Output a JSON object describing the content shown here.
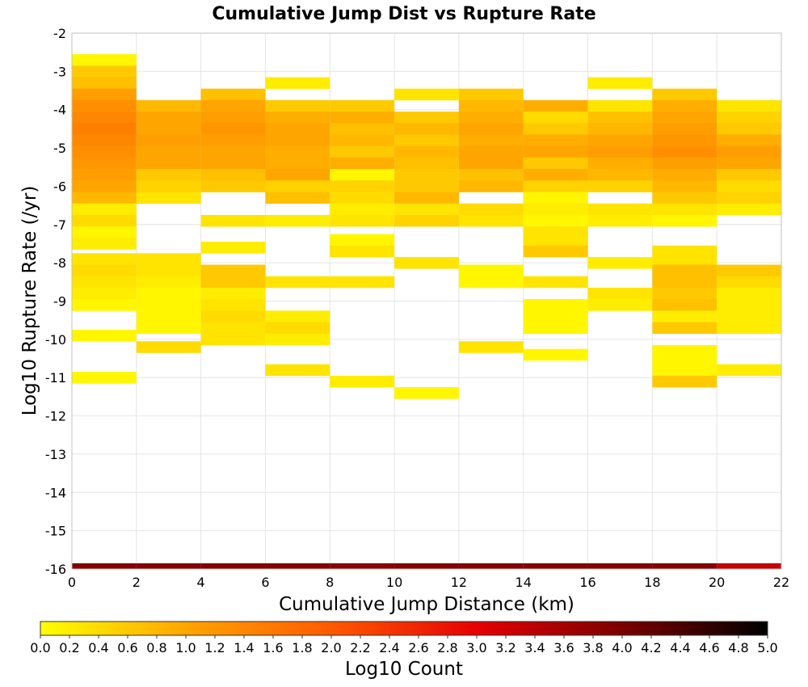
{
  "chart_data": {
    "type": "heatmap",
    "title": "Cumulative Jump Dist vs Rupture Rate",
    "xlabel": "Cumulative Jump Distance (km)",
    "ylabel": "Log10 Rupture Rate (/yr)",
    "xlim": [
      0,
      22
    ],
    "ylim": [
      -16,
      -2
    ],
    "x_ticks": [
      "0",
      "2",
      "4",
      "6",
      "8",
      "10",
      "12",
      "14",
      "16",
      "18",
      "20",
      "22"
    ],
    "y_ticks": [
      "-2",
      "-3",
      "-4",
      "-5",
      "-6",
      "-7",
      "-8",
      "-9",
      "-10",
      "-11",
      "-12",
      "-13",
      "-14",
      "-15",
      "-16"
    ],
    "x_bin_width": 2,
    "y_bin_height": 0.3,
    "grid": true,
    "colorbar": {
      "label": "Log10 Count",
      "range": [
        0,
        5
      ],
      "ticks": [
        "0.0",
        "0.2",
        "0.4",
        "0.6",
        "0.8",
        "1.0",
        "1.2",
        "1.4",
        "1.6",
        "1.8",
        "2.0",
        "2.2",
        "2.4",
        "2.6",
        "2.8",
        "3.0",
        "3.2",
        "3.4",
        "3.6",
        "3.8",
        "4.0",
        "4.2",
        "4.4",
        "4.6",
        "4.8",
        "5.0"
      ],
      "colors": [
        "#ffff00",
        "#ffa500",
        "#ff5a00",
        "#e60000",
        "#7a0000",
        "#000000"
      ]
    },
    "columns": [
      {
        "x_start": 0,
        "cells": [
          {
            "y": -2.7,
            "v": 0.1
          },
          {
            "y": -3.0,
            "v": 0.6
          },
          {
            "y": -3.3,
            "v": 0.7
          },
          {
            "y": -3.6,
            "v": 1.1
          },
          {
            "y": -3.9,
            "v": 1.3
          },
          {
            "y": -4.2,
            "v": 1.4
          },
          {
            "y": -4.5,
            "v": 1.5
          },
          {
            "y": -4.8,
            "v": 1.4
          },
          {
            "y": -5.1,
            "v": 1.3
          },
          {
            "y": -5.4,
            "v": 1.2
          },
          {
            "y": -5.7,
            "v": 1.1
          },
          {
            "y": -6.0,
            "v": 1.0
          },
          {
            "y": -6.3,
            "v": 0.8
          },
          {
            "y": -6.6,
            "v": 0.2
          },
          {
            "y": -6.9,
            "v": 0.4
          },
          {
            "y": -7.2,
            "v": 0.1
          },
          {
            "y": -7.5,
            "v": 0.2
          },
          {
            "y": -7.9,
            "v": 0.3
          },
          {
            "y": -8.2,
            "v": 0.4
          },
          {
            "y": -8.5,
            "v": 0.3
          },
          {
            "y": -8.8,
            "v": 0.2
          },
          {
            "y": -9.1,
            "v": 0.1
          },
          {
            "y": -9.9,
            "v": 0.1
          },
          {
            "y": -11.0,
            "v": 0.1
          }
        ]
      },
      {
        "x_start": 2,
        "cells": [
          {
            "y": -3.9,
            "v": 0.8
          },
          {
            "y": -4.2,
            "v": 1.0
          },
          {
            "y": -4.5,
            "v": 1.0
          },
          {
            "y": -4.8,
            "v": 1.1
          },
          {
            "y": -5.1,
            "v": 1.0
          },
          {
            "y": -5.4,
            "v": 1.0
          },
          {
            "y": -5.7,
            "v": 0.6
          },
          {
            "y": -6.0,
            "v": 0.5
          },
          {
            "y": -6.3,
            "v": 0.3
          },
          {
            "y": -7.9,
            "v": 0.3
          },
          {
            "y": -8.2,
            "v": 0.3
          },
          {
            "y": -8.5,
            "v": 0.2
          },
          {
            "y": -8.8,
            "v": 0.1
          },
          {
            "y": -9.1,
            "v": 0.1
          },
          {
            "y": -9.4,
            "v": 0.1
          },
          {
            "y": -9.7,
            "v": 0.1
          },
          {
            "y": -10.2,
            "v": 0.4
          }
        ]
      },
      {
        "x_start": 4,
        "cells": [
          {
            "y": -3.6,
            "v": 0.7
          },
          {
            "y": -3.9,
            "v": 1.0
          },
          {
            "y": -4.2,
            "v": 1.1
          },
          {
            "y": -4.5,
            "v": 1.2
          },
          {
            "y": -4.8,
            "v": 1.1
          },
          {
            "y": -5.1,
            "v": 1.0
          },
          {
            "y": -5.4,
            "v": 1.0
          },
          {
            "y": -5.7,
            "v": 0.7
          },
          {
            "y": -6.0,
            "v": 0.6
          },
          {
            "y": -6.9,
            "v": 0.3
          },
          {
            "y": -7.6,
            "v": 0.2
          },
          {
            "y": -8.2,
            "v": 0.6
          },
          {
            "y": -8.5,
            "v": 0.6
          },
          {
            "y": -8.8,
            "v": 0.2
          },
          {
            "y": -9.1,
            "v": 0.3
          },
          {
            "y": -9.4,
            "v": 0.4
          },
          {
            "y": -9.7,
            "v": 0.3
          },
          {
            "y": -10.0,
            "v": 0.3
          }
        ]
      },
      {
        "x_start": 6,
        "cells": [
          {
            "y": -3.3,
            "v": 0.2
          },
          {
            "y": -3.9,
            "v": 0.6
          },
          {
            "y": -4.2,
            "v": 0.9
          },
          {
            "y": -4.5,
            "v": 1.0
          },
          {
            "y": -4.8,
            "v": 1.0
          },
          {
            "y": -5.1,
            "v": 0.9
          },
          {
            "y": -5.4,
            "v": 0.9
          },
          {
            "y": -5.7,
            "v": 1.0
          },
          {
            "y": -6.0,
            "v": 0.5
          },
          {
            "y": -6.3,
            "v": 0.7
          },
          {
            "y": -6.9,
            "v": 0.2
          },
          {
            "y": -8.5,
            "v": 0.3
          },
          {
            "y": -9.4,
            "v": 0.2
          },
          {
            "y": -9.7,
            "v": 0.4
          },
          {
            "y": -10.0,
            "v": 0.2
          },
          {
            "y": -10.8,
            "v": 0.3
          }
        ]
      },
      {
        "x_start": 8,
        "cells": [
          {
            "y": -3.9,
            "v": 0.6
          },
          {
            "y": -4.2,
            "v": 0.9
          },
          {
            "y": -4.5,
            "v": 0.7
          },
          {
            "y": -4.8,
            "v": 0.8
          },
          {
            "y": -5.1,
            "v": 0.6
          },
          {
            "y": -5.4,
            "v": 0.9
          },
          {
            "y": -5.7,
            "v": 0.1
          },
          {
            "y": -6.0,
            "v": 0.5
          },
          {
            "y": -6.3,
            "v": 0.4
          },
          {
            "y": -6.6,
            "v": 0.2
          },
          {
            "y": -6.9,
            "v": 0.3
          },
          {
            "y": -7.4,
            "v": 0.1
          },
          {
            "y": -7.7,
            "v": 0.3
          },
          {
            "y": -8.5,
            "v": 0.3
          },
          {
            "y": -11.1,
            "v": 0.2
          }
        ]
      },
      {
        "x_start": 10,
        "cells": [
          {
            "y": -3.6,
            "v": 0.3
          },
          {
            "y": -4.2,
            "v": 0.6
          },
          {
            "y": -4.5,
            "v": 0.8
          },
          {
            "y": -4.8,
            "v": 0.6
          },
          {
            "y": -5.1,
            "v": 0.8
          },
          {
            "y": -5.4,
            "v": 0.7
          },
          {
            "y": -5.7,
            "v": 0.6
          },
          {
            "y": -6.0,
            "v": 0.6
          },
          {
            "y": -6.3,
            "v": 0.8
          },
          {
            "y": -6.6,
            "v": 0.3
          },
          {
            "y": -6.9,
            "v": 0.5
          },
          {
            "y": -8.0,
            "v": 0.3
          },
          {
            "y": -11.4,
            "v": 0.1
          }
        ]
      },
      {
        "x_start": 12,
        "cells": [
          {
            "y": -3.6,
            "v": 0.6
          },
          {
            "y": -3.9,
            "v": 0.8
          },
          {
            "y": -4.2,
            "v": 0.9
          },
          {
            "y": -4.5,
            "v": 1.0
          },
          {
            "y": -4.8,
            "v": 0.9
          },
          {
            "y": -5.1,
            "v": 1.0
          },
          {
            "y": -5.4,
            "v": 1.0
          },
          {
            "y": -5.7,
            "v": 0.7
          },
          {
            "y": -6.0,
            "v": 0.8
          },
          {
            "y": -6.6,
            "v": 0.4
          },
          {
            "y": -6.9,
            "v": 0.3
          },
          {
            "y": -8.2,
            "v": 0.1
          },
          {
            "y": -8.5,
            "v": 0.1
          },
          {
            "y": -10.2,
            "v": 0.3
          }
        ]
      },
      {
        "x_start": 14,
        "cells": [
          {
            "y": -3.9,
            "v": 0.9
          },
          {
            "y": -4.2,
            "v": 0.4
          },
          {
            "y": -4.5,
            "v": 0.6
          },
          {
            "y": -4.8,
            "v": 0.9
          },
          {
            "y": -5.1,
            "v": 1.0
          },
          {
            "y": -5.4,
            "v": 0.6
          },
          {
            "y": -5.7,
            "v": 0.9
          },
          {
            "y": -6.0,
            "v": 0.5
          },
          {
            "y": -6.3,
            "v": 0.1
          },
          {
            "y": -6.6,
            "v": 0.2
          },
          {
            "y": -6.9,
            "v": 0.1
          },
          {
            "y": -7.2,
            "v": 0.3
          },
          {
            "y": -7.5,
            "v": 0.3
          },
          {
            "y": -7.7,
            "v": 0.6
          },
          {
            "y": -8.5,
            "v": 0.3
          },
          {
            "y": -9.1,
            "v": 0.1
          },
          {
            "y": -9.4,
            "v": 0.1
          },
          {
            "y": -9.7,
            "v": 0.1
          },
          {
            "y": -10.4,
            "v": 0.1
          }
        ]
      },
      {
        "x_start": 16,
        "cells": [
          {
            "y": -3.3,
            "v": 0.2
          },
          {
            "y": -3.9,
            "v": 0.3
          },
          {
            "y": -4.2,
            "v": 0.7
          },
          {
            "y": -4.5,
            "v": 0.8
          },
          {
            "y": -4.8,
            "v": 1.0
          },
          {
            "y": -5.1,
            "v": 1.1
          },
          {
            "y": -5.4,
            "v": 0.9
          },
          {
            "y": -5.7,
            "v": 0.8
          },
          {
            "y": -6.0,
            "v": 0.5
          },
          {
            "y": -6.6,
            "v": 0.3
          },
          {
            "y": -6.9,
            "v": 0.2
          },
          {
            "y": -8.0,
            "v": 0.2
          },
          {
            "y": -8.8,
            "v": 0.3
          },
          {
            "y": -9.1,
            "v": 0.2
          }
        ]
      },
      {
        "x_start": 18,
        "cells": [
          {
            "y": -3.6,
            "v": 0.6
          },
          {
            "y": -3.9,
            "v": 0.9
          },
          {
            "y": -4.2,
            "v": 1.0
          },
          {
            "y": -4.5,
            "v": 1.1
          },
          {
            "y": -4.8,
            "v": 1.2
          },
          {
            "y": -5.1,
            "v": 1.3
          },
          {
            "y": -5.4,
            "v": 1.1
          },
          {
            "y": -5.7,
            "v": 0.9
          },
          {
            "y": -6.0,
            "v": 0.8
          },
          {
            "y": -6.3,
            "v": 0.6
          },
          {
            "y": -6.6,
            "v": 0.3
          },
          {
            "y": -6.9,
            "v": 0.1
          },
          {
            "y": -7.7,
            "v": 0.3
          },
          {
            "y": -8.0,
            "v": 0.3
          },
          {
            "y": -8.2,
            "v": 0.7
          },
          {
            "y": -8.5,
            "v": 0.7
          },
          {
            "y": -8.8,
            "v": 0.6
          },
          {
            "y": -9.1,
            "v": 0.7
          },
          {
            "y": -9.4,
            "v": 0.2
          },
          {
            "y": -9.7,
            "v": 0.6
          },
          {
            "y": -10.3,
            "v": 0.1
          },
          {
            "y": -10.6,
            "v": 0.1
          },
          {
            "y": -10.8,
            "v": 0.1
          },
          {
            "y": -11.1,
            "v": 0.6
          }
        ]
      },
      {
        "x_start": 20,
        "cells": [
          {
            "y": -3.9,
            "v": 0.3
          },
          {
            "y": -4.2,
            "v": 0.5
          },
          {
            "y": -4.5,
            "v": 0.6
          },
          {
            "y": -4.8,
            "v": 0.9
          },
          {
            "y": -5.1,
            "v": 1.1
          },
          {
            "y": -5.4,
            "v": 1.0
          },
          {
            "y": -5.7,
            "v": 0.6
          },
          {
            "y": -6.0,
            "v": 0.4
          },
          {
            "y": -6.3,
            "v": 0.5
          },
          {
            "y": -6.6,
            "v": 0.2
          },
          {
            "y": -8.2,
            "v": 0.6
          },
          {
            "y": -8.5,
            "v": 0.4
          },
          {
            "y": -8.8,
            "v": 0.2
          },
          {
            "y": -9.1,
            "v": 0.2
          },
          {
            "y": -9.4,
            "v": 0.2
          },
          {
            "y": -9.7,
            "v": 0.2
          },
          {
            "y": -10.8,
            "v": 0.2
          }
        ]
      }
    ],
    "bottom_row": {
      "y": -16.0,
      "height": 0.15,
      "values": [
        3.9,
        3.9,
        3.9,
        3.9,
        3.85,
        3.9,
        3.9,
        3.9,
        3.9,
        3.9,
        3.3
      ]
    }
  }
}
